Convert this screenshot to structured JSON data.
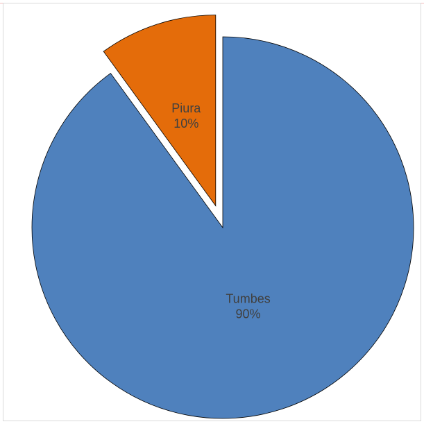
{
  "chart_data": {
    "type": "pie",
    "title": "",
    "slices": [
      {
        "label": "Tumbes",
        "percent_label": "90%",
        "value": 90,
        "color": "#4f81bd",
        "exploded": false
      },
      {
        "label": "Piura",
        "percent_label": "10%",
        "value": 10,
        "color": "#e46c0a",
        "exploded": true
      }
    ],
    "start_angle_deg": 0,
    "direction": "clockwise",
    "legend": "none",
    "data_labels": "inside"
  }
}
